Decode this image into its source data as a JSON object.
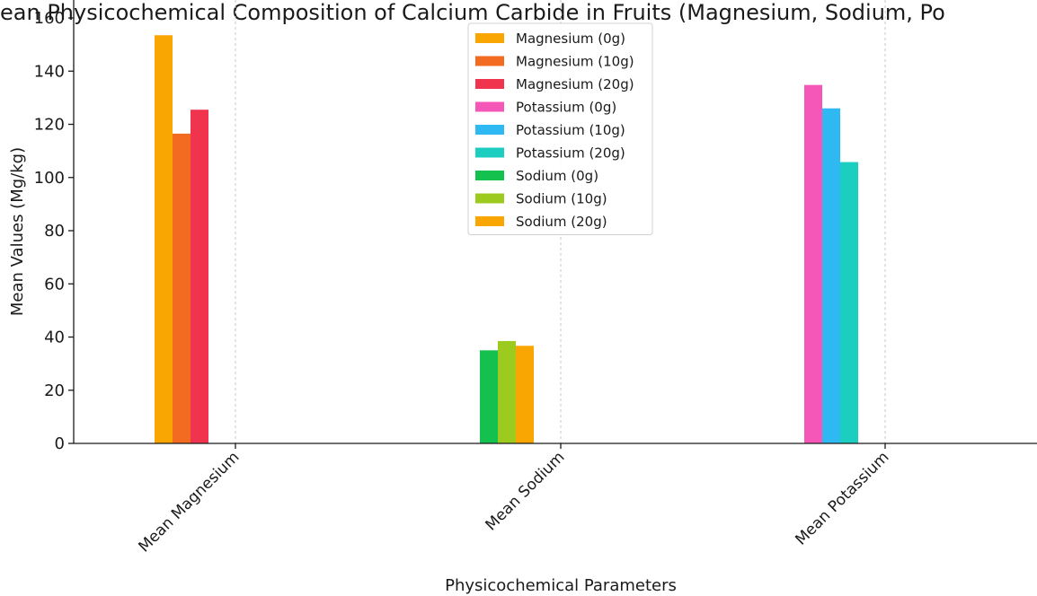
{
  "chart_data": {
    "type": "bar",
    "title": "ean Physicochemical Composition of Calcium Carbide in Fruits (Magnesium, Sodium, Po",
    "xlabel": "Physicochemical Parameters",
    "ylabel": "Mean Values (Mg/kg)",
    "ylim": [
      0,
      160
    ],
    "yticks": [
      0,
      20,
      40,
      60,
      80,
      100,
      120,
      140,
      160
    ],
    "categories": [
      "Mean Magnesium",
      "Mean Sodium",
      "Mean Potassium"
    ],
    "grid": "x-dashed",
    "legend_position": "top-center",
    "series": [
      {
        "name": "Magnesium (0g)",
        "color": "#F9A602",
        "values": [
          153.5,
          null,
          null
        ]
      },
      {
        "name": "Magnesium (10g)",
        "color": "#F26B21",
        "values": [
          116.5,
          null,
          null
        ]
      },
      {
        "name": "Magnesium (20g)",
        "color": "#F0344E",
        "values": [
          125.5,
          null,
          null
        ]
      },
      {
        "name": "Potassium (0g)",
        "color": "#F557B9",
        "values": [
          null,
          null,
          134.8
        ]
      },
      {
        "name": "Potassium (10g)",
        "color": "#2EB9F2",
        "values": [
          null,
          null,
          126.0
        ]
      },
      {
        "name": "Potassium (20g)",
        "color": "#1CCEC0",
        "values": [
          null,
          null,
          105.8
        ]
      },
      {
        "name": "Sodium (0g)",
        "color": "#14C04E",
        "values": [
          null,
          35.0,
          null
        ]
      },
      {
        "name": "Sodium (10g)",
        "color": "#9DCA1E",
        "values": [
          null,
          38.5,
          null
        ]
      },
      {
        "name": "Sodium (20g)",
        "color": "#F9A602",
        "values": [
          null,
          36.7,
          null
        ]
      }
    ]
  }
}
